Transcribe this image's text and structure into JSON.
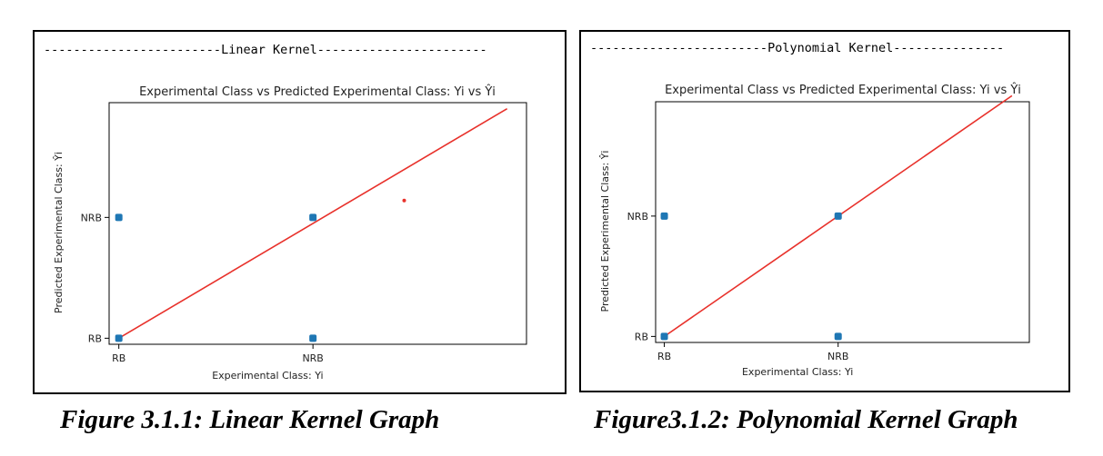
{
  "figures": [
    {
      "header": "------------------------Linear Kernel-----------------------",
      "caption": "Figure 3.1.1: Linear Kernel Graph",
      "chart_data": {
        "type": "scatter",
        "title": "Experimental Class vs Predicted Experimental Class: Yi vs Ŷi",
        "xlabel": "Experimental Class: Yi",
        "ylabel": "Predicted  Experimental Class: Ŷi",
        "x_categories": [
          "RB",
          "NRB"
        ],
        "y_categories": [
          "RB",
          "NRB"
        ],
        "xlim": [
          -0.05,
          2.1
        ],
        "ylim": [
          -0.05,
          1.95
        ],
        "grid": false,
        "points": [
          {
            "x": 0,
            "y": 0
          },
          {
            "x": 0,
            "y": 1
          },
          {
            "x": 1,
            "y": 0
          },
          {
            "x": 1,
            "y": 1
          }
        ],
        "extra_points": [
          {
            "x": 1.47,
            "y": 1.14
          }
        ],
        "reference_line": {
          "x": [
            0,
            2
          ],
          "y": [
            0,
            1.9
          ]
        },
        "colors": {
          "points": "#1f77b4",
          "line": "#e8312b"
        }
      }
    },
    {
      "header": "------------------------Polynomial Kernel---------------",
      "caption": "Figure3.1.2: Polynomial Kernel Graph",
      "chart_data": {
        "type": "scatter",
        "title": "Experimental Class vs Predicted Experimental Class: Yi vs Ŷi",
        "xlabel": "Experimental Class: Yi",
        "ylabel": "Predicted  Experimental Class: Ŷi",
        "x_categories": [
          "RB",
          "NRB"
        ],
        "y_categories": [
          "RB",
          "NRB"
        ],
        "xlim": [
          -0.05,
          2.1
        ],
        "ylim": [
          -0.05,
          1.95
        ],
        "grid": false,
        "points": [
          {
            "x": 0,
            "y": 0
          },
          {
            "x": 0,
            "y": 1
          },
          {
            "x": 1,
            "y": 0
          },
          {
            "x": 1,
            "y": 1
          }
        ],
        "extra_points": [],
        "reference_line": {
          "x": [
            0,
            2
          ],
          "y": [
            0,
            2
          ]
        },
        "colors": {
          "points": "#1f77b4",
          "line": "#e8312b"
        }
      }
    }
  ]
}
